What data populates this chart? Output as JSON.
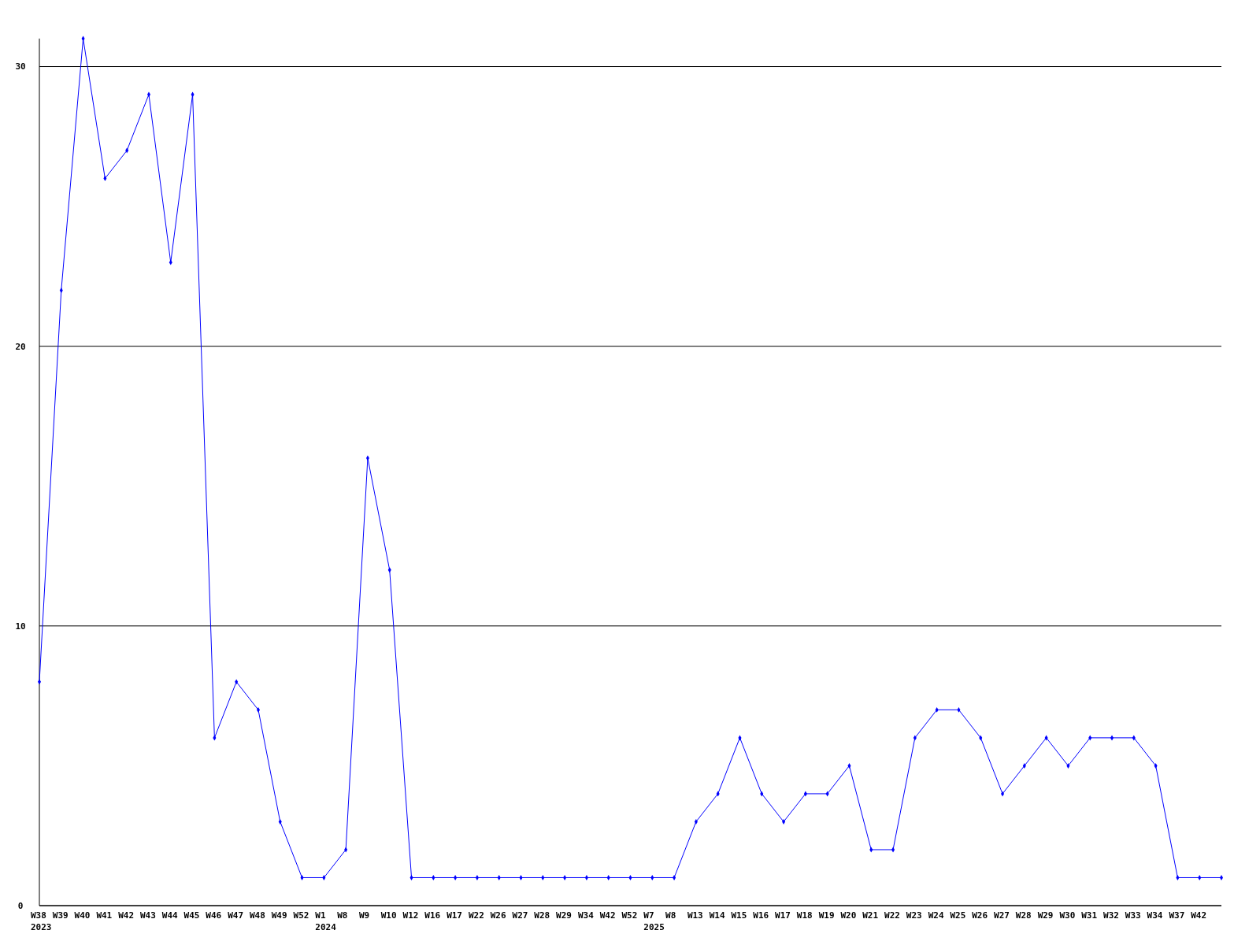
{
  "chart_data": {
    "type": "line",
    "categories": [
      "W38\n2023",
      "W39",
      "W40",
      "W41",
      "W42",
      "W43",
      "W44",
      "W45",
      "W46",
      "W47",
      "W48",
      "W49",
      "W52",
      "W1\n2024",
      "W8",
      "W9",
      "W10",
      "W12",
      "W16",
      "W17",
      "W22",
      "W26",
      "W27",
      "W28",
      "W29",
      "W34",
      "W42",
      "W52",
      "W7\n2025",
      "W8",
      "W13",
      "W14",
      "W15",
      "W16",
      "W17",
      "W18",
      "W19",
      "W20",
      "W21",
      "W22",
      "W23",
      "W24",
      "W25",
      "W26",
      "W27",
      "W28",
      "W29",
      "W30",
      "W31",
      "W32",
      "W33",
      "W34",
      "W37",
      "W42",
      null
    ],
    "series": [
      {
        "color": "#0000ff",
        "values": [
          8,
          22,
          31,
          26,
          27,
          29,
          23,
          29,
          6,
          8,
          7,
          3,
          1,
          1,
          2,
          16,
          12,
          1,
          1,
          1,
          1,
          1,
          1,
          1,
          1,
          1,
          1,
          1,
          1,
          1,
          3,
          4,
          6,
          4,
          3,
          4,
          4,
          5,
          2,
          2,
          6,
          7,
          7,
          6,
          4,
          5,
          6,
          5,
          6,
          6,
          6,
          5,
          1,
          1,
          1
        ]
      }
    ],
    "ylim": [
      0,
      31
    ],
    "yticks": [
      0,
      10,
      20,
      30
    ],
    "grid": "y",
    "marker": "diamond"
  }
}
